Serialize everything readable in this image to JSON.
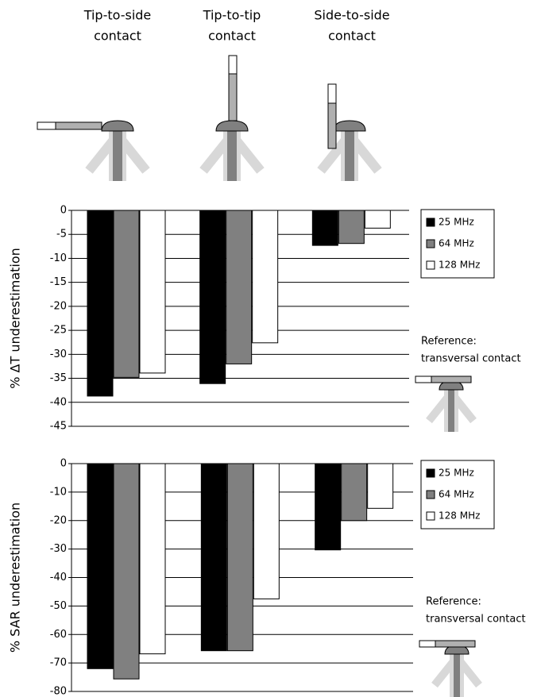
{
  "header": {
    "labels": [
      [
        "Tip-to-side",
        "contact"
      ],
      [
        "Tip-to-tip",
        "contact"
      ],
      [
        "Side-to-side",
        "contact"
      ]
    ]
  },
  "chart_data": [
    {
      "type": "bar",
      "y_label": "% ΔT underestimation",
      "categories": [
        null,
        null,
        null
      ],
      "series": [
        {
          "name": "25 MHz",
          "color": "#000000",
          "values": [
            -38.7,
            -36.1,
            -7.3
          ]
        },
        {
          "name": "64  MHz",
          "color": "#808080",
          "values": [
            -34.8,
            -32,
            -6.9
          ]
        },
        {
          "name": "128 MHz",
          "color": "#ffffff",
          "values": [
            -33.9,
            -27.6,
            -3.7
          ]
        }
      ],
      "ylim": [
        -45,
        0
      ],
      "yticks": [
        0,
        -5,
        -10,
        -15,
        -20,
        -25,
        -30,
        -35,
        -40,
        -45
      ],
      "grid": true,
      "annotation": [
        "Reference:",
        "transversal contact"
      ]
    },
    {
      "type": "bar",
      "y_label": "% SAR underestimation",
      "categories": [
        null,
        null,
        null
      ],
      "series": [
        {
          "name": "25 MHz",
          "color": "#000000",
          "values": [
            -72,
            -65.7,
            -30.3
          ]
        },
        {
          "name": "64 MHz",
          "color": "#808080",
          "values": [
            -75.6,
            -65.7,
            -20
          ]
        },
        {
          "name": "128 MHz",
          "color": "#ffffff",
          "values": [
            -66.8,
            -47.5,
            -15.7
          ]
        }
      ],
      "ylim": [
        -80,
        0
      ],
      "yticks": [
        0,
        -10,
        -20,
        -30,
        -40,
        -50,
        -60,
        -70,
        -80
      ],
      "grid": true,
      "annotation": [
        "Reference:",
        "transversal contact"
      ]
    }
  ]
}
